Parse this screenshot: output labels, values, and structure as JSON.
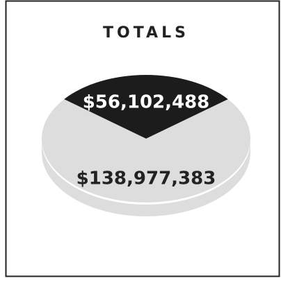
{
  "chart_data": {
    "type": "pie",
    "title": "TOTALS",
    "values": [
      56102488,
      138977383
    ],
    "value_labels": [
      "$56,102,488",
      "$138,977,383"
    ],
    "colors": [
      "#1c1c1c",
      "#dddddd"
    ]
  }
}
